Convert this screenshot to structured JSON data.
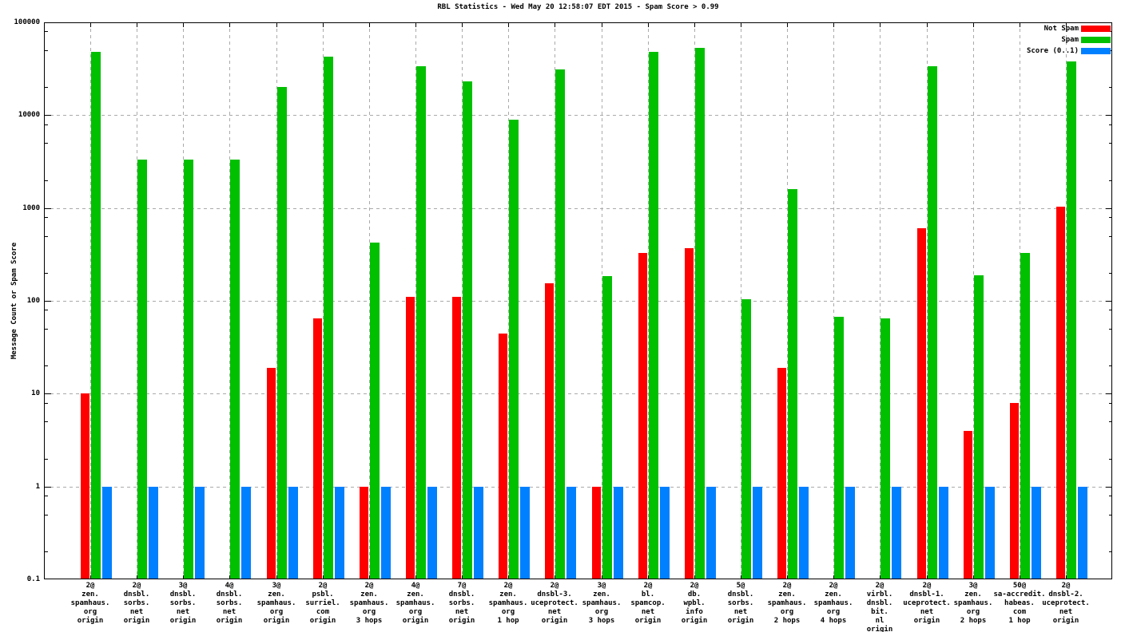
{
  "chart_data": {
    "type": "bar",
    "title": "RBL Statistics - Wed May 20 12:58:07 EDT 2015 - Spam Score > 0.99",
    "xlabel": "",
    "ylabel": "Message Count or Spam Score",
    "yscale": "log",
    "ylim": [
      0.1,
      100000
    ],
    "ytick_labels": [
      "100000",
      "10000",
      "1000",
      "100",
      "10",
      "1",
      "0.1"
    ],
    "ytick_values": [
      100000,
      10000,
      1000,
      100,
      10,
      1,
      0.1
    ],
    "grid": true,
    "legend_position": "top-right-inside",
    "categories": [
      [
        "2@",
        "zen.",
        "spamhaus.",
        "org",
        "origin"
      ],
      [
        "2@",
        "dnsbl.",
        "sorbs.",
        "net",
        "origin"
      ],
      [
        "3@",
        "dnsbl.",
        "sorbs.",
        "net",
        "origin"
      ],
      [
        "4@",
        "dnsbl.",
        "sorbs.",
        "net",
        "origin"
      ],
      [
        "3@",
        "zen.",
        "spamhaus.",
        "org",
        "origin"
      ],
      [
        "2@",
        "psbl.",
        "surriel.",
        "com",
        "origin"
      ],
      [
        "2@",
        "zen.",
        "spamhaus.",
        "org",
        "3 hops"
      ],
      [
        "4@",
        "zen.",
        "spamhaus.",
        "org",
        "origin"
      ],
      [
        "7@",
        "dnsbl.",
        "sorbs.",
        "net",
        "origin"
      ],
      [
        "2@",
        "zen.",
        "spamhaus.",
        "org",
        "1 hop"
      ],
      [
        "2@",
        "dnsbl-3.",
        "uceprotect.",
        "net",
        "origin"
      ],
      [
        "3@",
        "zen.",
        "spamhaus.",
        "org",
        "3 hops"
      ],
      [
        "2@",
        "bl.",
        "spamcop.",
        "net",
        "origin"
      ],
      [
        "2@",
        "db.",
        "wpbl.",
        "info",
        "origin"
      ],
      [
        "5@",
        "dnsbl.",
        "sorbs.",
        "net",
        "origin"
      ],
      [
        "2@",
        "zen.",
        "spamhaus.",
        "org",
        "2 hops"
      ],
      [
        "2@",
        "zen.",
        "spamhaus.",
        "org",
        "4 hops"
      ],
      [
        "2@",
        "virbl.",
        "dnsbl.",
        "bit.",
        "nl",
        "origin"
      ],
      [
        "2@",
        "dnsbl-1.",
        "uceprotect.",
        "net",
        "origin"
      ],
      [
        "3@",
        "zen.",
        "spamhaus.",
        "org",
        "2 hops"
      ],
      [
        "50@",
        "sa-accredit.",
        "habeas.",
        "com",
        "1 hop"
      ],
      [
        "2@",
        "dnsbl-2.",
        "uceprotect.",
        "net",
        "origin"
      ]
    ],
    "series": [
      {
        "name": "Not Spam",
        "color": "#ff0000",
        "values": [
          10,
          null,
          null,
          null,
          19,
          65,
          1,
          110,
          110,
          44,
          155,
          1,
          330,
          370,
          null,
          19,
          null,
          null,
          600,
          4,
          8,
          1030
        ]
      },
      {
        "name": "Spam",
        "color": "#00c000",
        "values": [
          48000,
          3300,
          3300,
          3300,
          20000,
          43000,
          420,
          34000,
          23000,
          9000,
          31000,
          185,
          48000,
          53000,
          105,
          1600,
          67,
          65,
          34000,
          190,
          330,
          38000
        ]
      },
      {
        "name": "Score (0..1)",
        "color": "#0080ff",
        "values": [
          1,
          1,
          1,
          1,
          1,
          1,
          1,
          1,
          1,
          1,
          1,
          1,
          1,
          1,
          1,
          1,
          1,
          1,
          1,
          1,
          1,
          1
        ]
      }
    ],
    "minor_tick_multiples": [
      2,
      5,
      8
    ]
  }
}
